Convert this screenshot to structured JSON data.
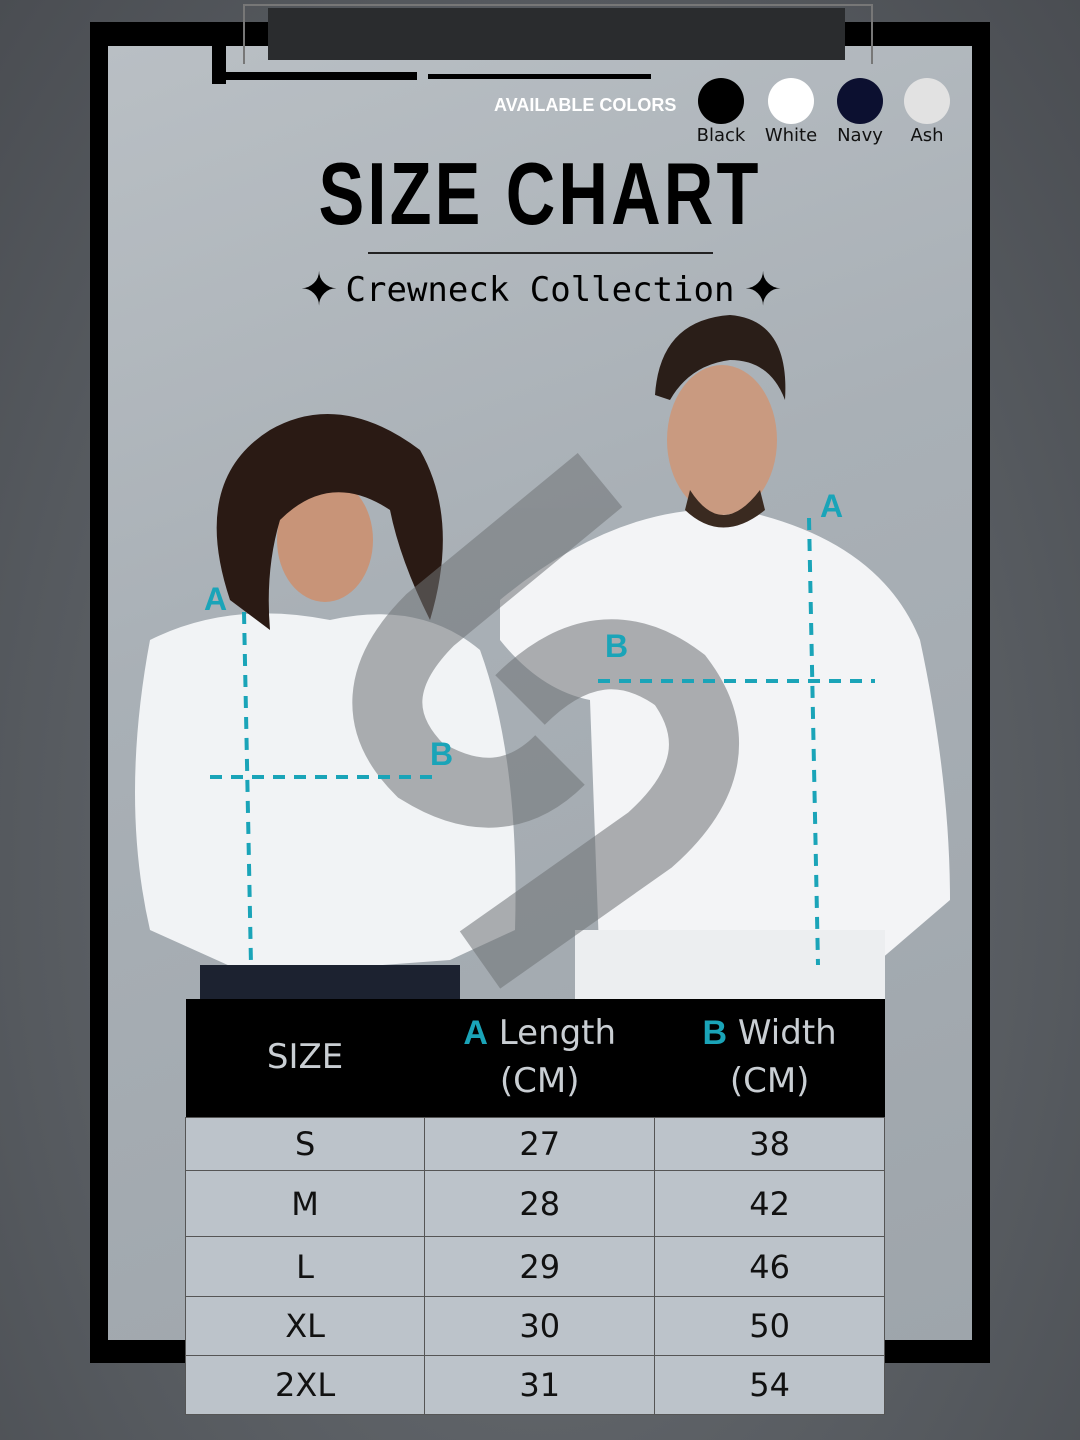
{
  "header": {
    "available_colors_label": "AVAILABLE COLORS",
    "colors": [
      {
        "name": "Black",
        "hex": "#000000"
      },
      {
        "name": "White",
        "hex": "#ffffff"
      },
      {
        "name": "Navy",
        "hex": "#0c1030"
      },
      {
        "name": "Ash",
        "hex": "#e2e2e2"
      }
    ],
    "title": "SIZE CHART",
    "subtitle": "Crewneck Collection"
  },
  "diagram": {
    "length_marker": "A",
    "width_marker": "B",
    "accent_color": "#1aa4b8"
  },
  "table": {
    "headers": {
      "size": "SIZE",
      "length_letter": "A",
      "length": "Length",
      "length_unit": "(CM)",
      "width_letter": "B",
      "width": "Width",
      "width_unit": "(CM)"
    },
    "rows": [
      {
        "size": "S",
        "length": "27",
        "width": "38"
      },
      {
        "size": "M",
        "length": "28",
        "width": "42"
      },
      {
        "size": "L",
        "length": "29",
        "width": "46"
      },
      {
        "size": "XL",
        "length": "30",
        "width": "50"
      },
      {
        "size": "2XL",
        "length": "31",
        "width": "54"
      }
    ]
  }
}
